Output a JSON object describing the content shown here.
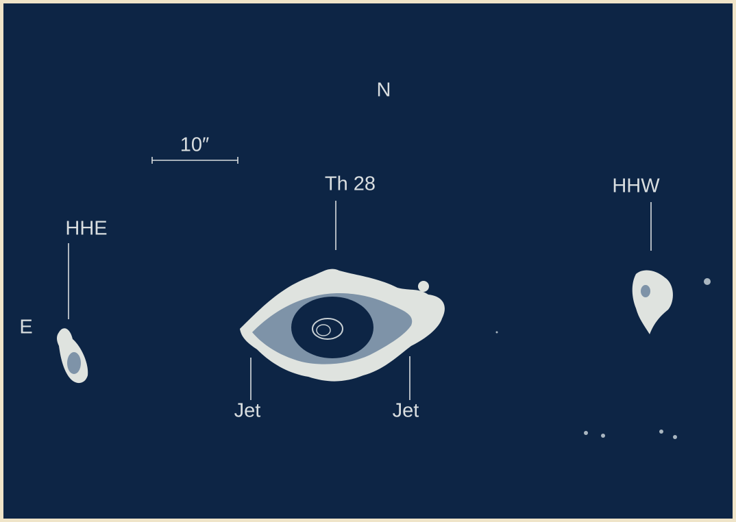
{
  "compass": {
    "north": "N",
    "east": "E"
  },
  "scale_bar": "10″",
  "objects": [
    {
      "label": "Th 28"
    },
    {
      "label": "HHW"
    },
    {
      "label": "HHE"
    }
  ],
  "jets": [
    "Jet",
    "Jet"
  ]
}
